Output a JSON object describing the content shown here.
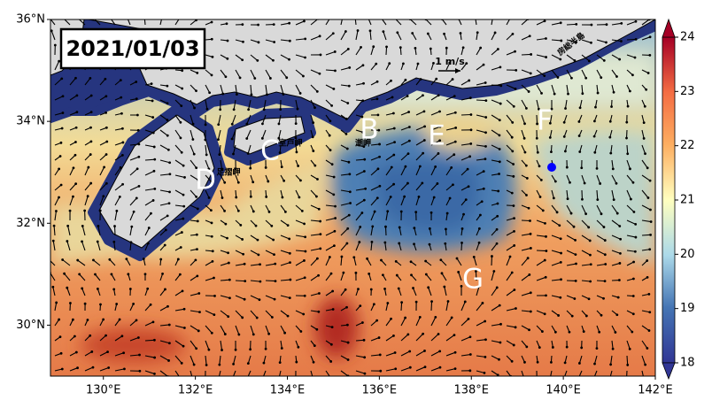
{
  "title_label": "2021/01/03",
  "scale_label": "1 m/s",
  "map": {
    "xlim": [
      128.85,
      142
    ],
    "ylim": [
      29,
      36
    ],
    "xticks": [
      {
        "value": 130,
        "label": "130°E"
      },
      {
        "value": 132,
        "label": "132°E"
      },
      {
        "value": 134,
        "label": "134°E"
      },
      {
        "value": 136,
        "label": "136°E"
      },
      {
        "value": 138,
        "label": "138°E"
      },
      {
        "value": 140,
        "label": "140°E"
      },
      {
        "value": 142,
        "label": "142°E"
      }
    ],
    "yticks": [
      {
        "value": 30,
        "label": "30°N"
      },
      {
        "value": 32,
        "label": "32°N"
      },
      {
        "value": 34,
        "label": "34°N"
      },
      {
        "value": 36,
        "label": "36°N"
      }
    ]
  },
  "colorbar": {
    "lim": [
      18,
      24
    ],
    "ticks": [
      18,
      19,
      20,
      21,
      22,
      23,
      24
    ]
  },
  "annotations": {
    "letters": [
      "B",
      "C",
      "D",
      "E",
      "F",
      "G"
    ],
    "places": [
      "足摺岬",
      "室戸岬",
      "潮岬",
      "房総半島"
    ]
  }
}
